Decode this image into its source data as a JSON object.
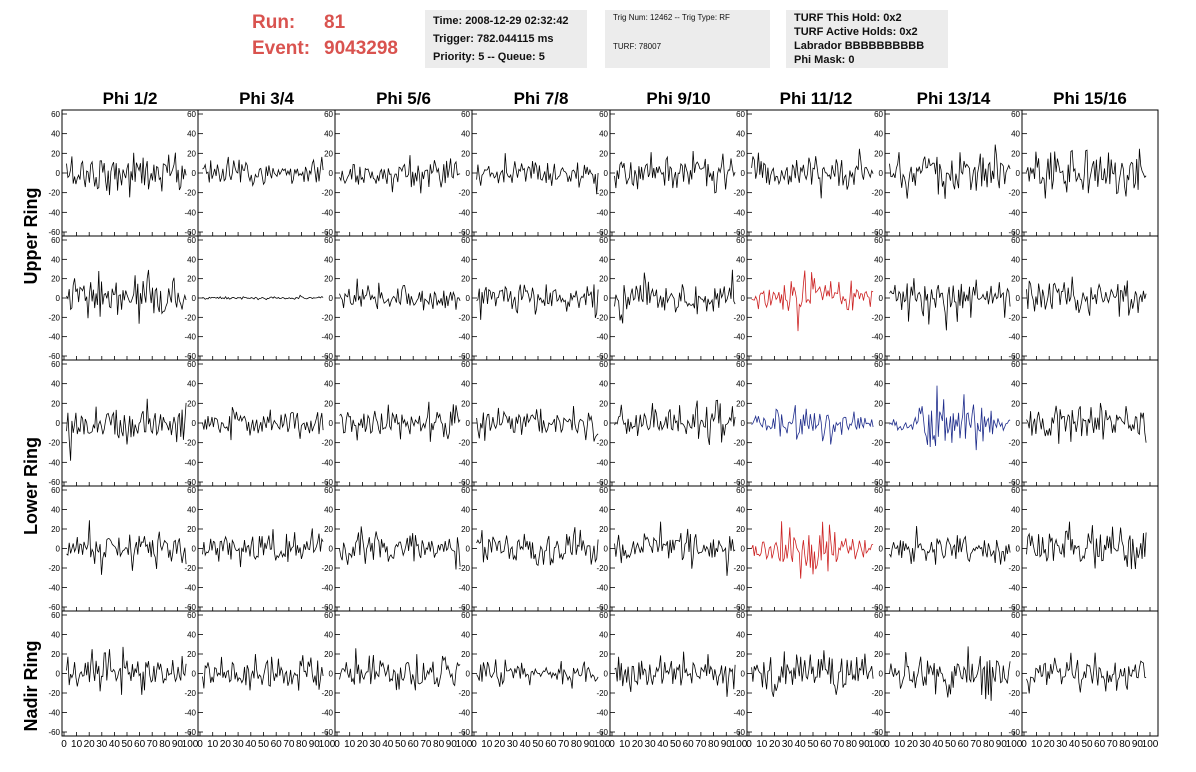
{
  "header": {
    "run_label": "Run:",
    "run_value": "81",
    "event_label": "Event:",
    "event_value": "9043298",
    "time": "Time: 2008-12-29 02:32:42",
    "trigger": "Trigger: 782.044115 ms",
    "priority": "Priority: 5 -- Queue: 5",
    "trig_num": "Trig Num: 12462 -- Trig Type: RF",
    "turf": "TURF: 78007",
    "turf_this_hold": "TURF This Hold: 0x2",
    "turf_active_holds": "TURF Active Holds: 0x2",
    "labrador": "Labrador BBBBBBBBBB",
    "phi_mask": "Phi Mask: 0"
  },
  "colors": {
    "normal": "#000000",
    "red": "#cc2222",
    "blue": "#1f2d8c",
    "header_red": "#d9534f"
  },
  "chart_data": {
    "type": "line",
    "description_of_rows": [
      "Upper Ring",
      "Upper Ring",
      "Lower Ring",
      "Lower Ring",
      "Nadir Ring"
    ],
    "columns": [
      "Phi 1/2",
      "Phi 3/4",
      "Phi 5/6",
      "Phi 7/8",
      "Phi 9/10",
      "Phi 11/12",
      "Phi 13/14",
      "Phi 15/16"
    ],
    "ring_labels": [
      "Upper Ring",
      "Lower Ring",
      "Nadir Ring"
    ],
    "xlim": [
      0,
      100
    ],
    "x_ticks": [
      0,
      10,
      20,
      30,
      40,
      50,
      60,
      70,
      80,
      90,
      100
    ],
    "ylim": [
      -60,
      60
    ],
    "y_ticks": [
      -60,
      -40,
      -20,
      0,
      20,
      40,
      60
    ],
    "samples_per_trace": 90,
    "panels": [
      {
        "row": 0,
        "col": 0,
        "amp": 18,
        "color": "normal"
      },
      {
        "row": 0,
        "col": 1,
        "amp": 14,
        "color": "normal"
      },
      {
        "row": 0,
        "col": 2,
        "amp": 15,
        "color": "normal"
      },
      {
        "row": 0,
        "col": 3,
        "amp": 13,
        "color": "normal"
      },
      {
        "row": 0,
        "col": 4,
        "amp": 18,
        "color": "normal"
      },
      {
        "row": 0,
        "col": 5,
        "amp": 14,
        "color": "normal"
      },
      {
        "row": 0,
        "col": 6,
        "amp": 20,
        "color": "normal"
      },
      {
        "row": 0,
        "col": 7,
        "amp": 19,
        "color": "normal"
      },
      {
        "row": 1,
        "col": 0,
        "amp": 22,
        "color": "normal"
      },
      {
        "row": 1,
        "col": 1,
        "amp": 1.5,
        "color": "normal"
      },
      {
        "row": 1,
        "col": 2,
        "amp": 14,
        "color": "normal"
      },
      {
        "row": 1,
        "col": 3,
        "amp": 15,
        "color": "normal"
      },
      {
        "row": 1,
        "col": 4,
        "amp": 18,
        "color": "normal"
      },
      {
        "row": 1,
        "col": 5,
        "amp": 26,
        "color": "red"
      },
      {
        "row": 1,
        "col": 6,
        "amp": 17,
        "color": "normal"
      },
      {
        "row": 1,
        "col": 7,
        "amp": 20,
        "color": "normal"
      },
      {
        "row": 2,
        "col": 0,
        "amp": 20,
        "color": "normal"
      },
      {
        "row": 2,
        "col": 1,
        "amp": 13,
        "color": "normal"
      },
      {
        "row": 2,
        "col": 2,
        "amp": 18,
        "color": "normal"
      },
      {
        "row": 2,
        "col": 3,
        "amp": 15,
        "color": "normal"
      },
      {
        "row": 2,
        "col": 4,
        "amp": 17,
        "color": "normal"
      },
      {
        "row": 2,
        "col": 5,
        "amp": 19,
        "color": "blue"
      },
      {
        "row": 2,
        "col": 6,
        "amp": 27,
        "color": "blue"
      },
      {
        "row": 2,
        "col": 7,
        "amp": 16,
        "color": "normal"
      },
      {
        "row": 3,
        "col": 0,
        "amp": 18,
        "color": "normal"
      },
      {
        "row": 3,
        "col": 1,
        "amp": 15,
        "color": "normal"
      },
      {
        "row": 3,
        "col": 2,
        "amp": 17,
        "color": "normal"
      },
      {
        "row": 3,
        "col": 3,
        "amp": 16,
        "color": "normal"
      },
      {
        "row": 3,
        "col": 4,
        "amp": 15,
        "color": "normal"
      },
      {
        "row": 3,
        "col": 5,
        "amp": 27,
        "color": "red"
      },
      {
        "row": 3,
        "col": 6,
        "amp": 15,
        "color": "normal"
      },
      {
        "row": 3,
        "col": 7,
        "amp": 22,
        "color": "normal"
      },
      {
        "row": 4,
        "col": 0,
        "amp": 18,
        "color": "normal"
      },
      {
        "row": 4,
        "col": 1,
        "amp": 13,
        "color": "normal"
      },
      {
        "row": 4,
        "col": 2,
        "amp": 16,
        "color": "normal"
      },
      {
        "row": 4,
        "col": 3,
        "amp": 13,
        "color": "normal"
      },
      {
        "row": 4,
        "col": 4,
        "amp": 15,
        "color": "normal"
      },
      {
        "row": 4,
        "col": 5,
        "amp": 19,
        "color": "normal"
      },
      {
        "row": 4,
        "col": 6,
        "amp": 20,
        "color": "normal"
      },
      {
        "row": 4,
        "col": 7,
        "amp": 17,
        "color": "normal"
      }
    ]
  }
}
